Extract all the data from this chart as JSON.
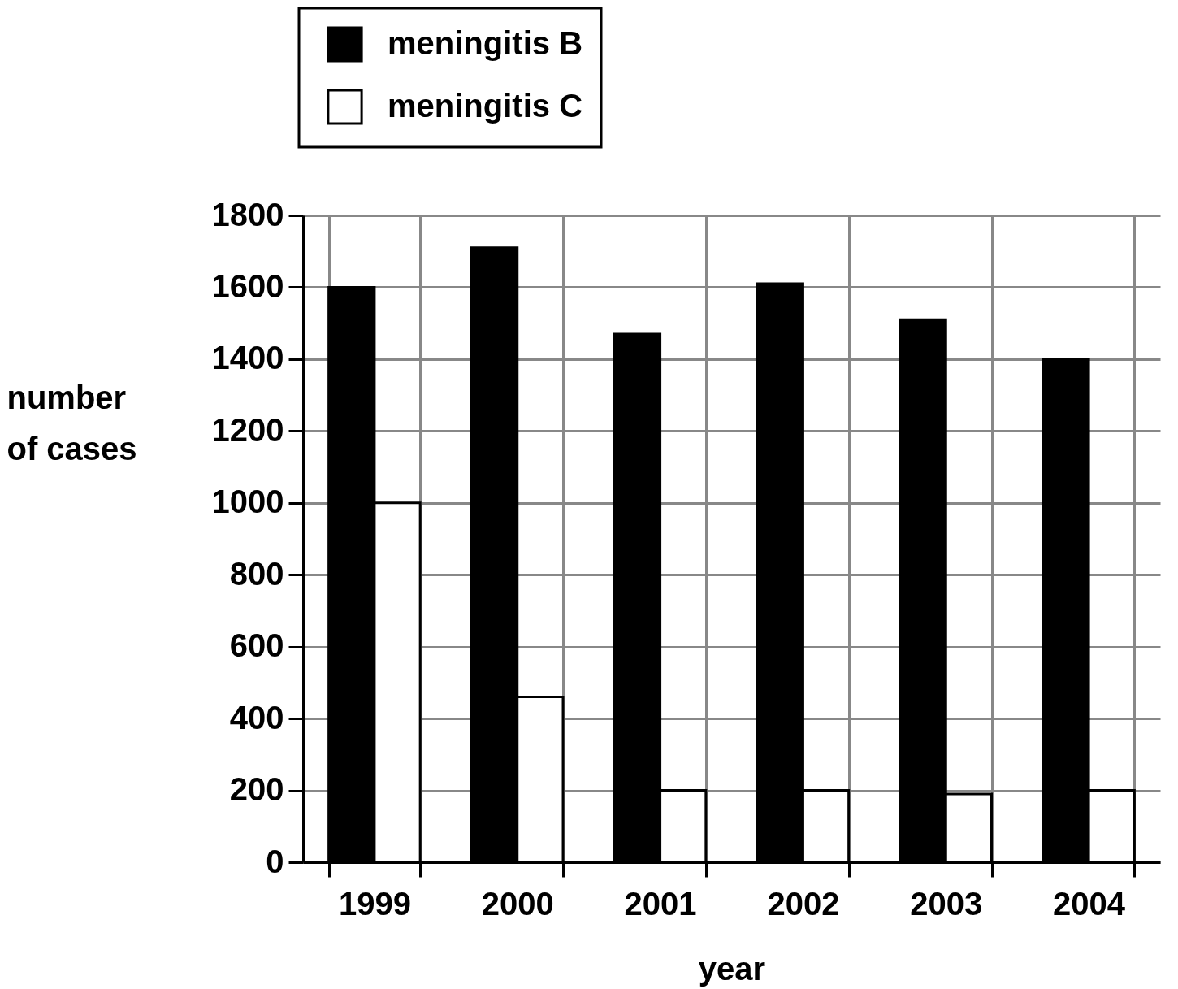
{
  "chart_data": {
    "type": "bar",
    "xlabel": "year",
    "ylabel": "number of cases",
    "categories": [
      "1999",
      "2000",
      "2001",
      "2002",
      "2003",
      "2004"
    ],
    "series": [
      {
        "name": "meningitis B",
        "color": "#000000",
        "values": [
          1600,
          1710,
          1470,
          1610,
          1510,
          1400
        ]
      },
      {
        "name": "meningitis C",
        "color": "#ffffff",
        "values": [
          1000,
          460,
          200,
          200,
          190,
          200
        ]
      }
    ],
    "ylim": [
      0,
      1800
    ],
    "yticks": [
      0,
      200,
      400,
      600,
      800,
      1000,
      1200,
      1400,
      1600,
      1800
    ],
    "grid": true,
    "legend": "top"
  }
}
